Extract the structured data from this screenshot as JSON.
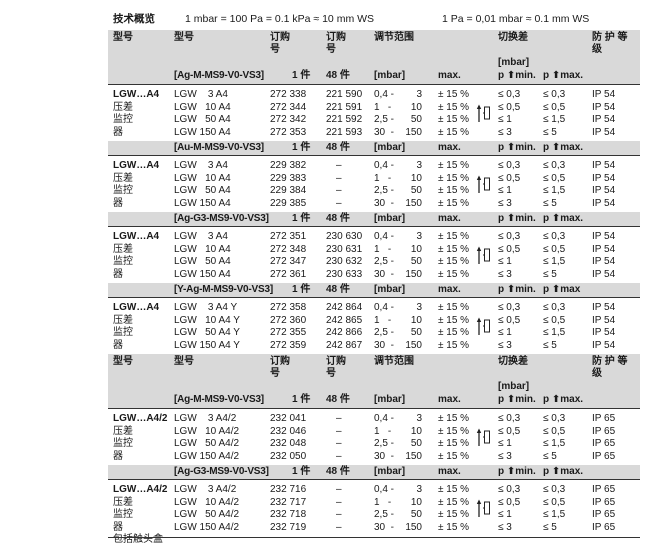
{
  "title": {
    "label": "技术概览",
    "conv1": "1 mbar = 100 Pa = 0.1 kPa ≈ 10 mm WS",
    "conv2": "1 Pa = 0,01 mbar ≈ 0.1 mm WS"
  },
  "header_labels": {
    "c1": "型号",
    "c2": "型号",
    "c3": "订购\n号",
    "c4": "订购\n号",
    "range": "调节范围",
    "diff": "切换差",
    "diff_unit": "[mbar]",
    "ip": "防 护 等\n级"
  },
  "icon": "pressure-switch-symbol-icon",
  "colors": {
    "band": "#d9d9d9",
    "text": "#1a1a1a"
  },
  "tables": [
    {
      "groups": [
        {
          "sub": {
            "variant": "[Ag-M-MS9-V0-VS3]",
            "c3": "1 件",
            "c4": "48 件",
            "range": "[mbar]",
            "max": "max.",
            "min": "p ⬆min.",
            "pmax": "p ⬆max."
          },
          "label": [
            "LGW…A4",
            "压差",
            "监控",
            "器"
          ],
          "rows": [
            {
              "type": "LGW    3 A4",
              "o1": "272 338",
              "o48": "221 590",
              "lo": "0,4 -",
              "hi": "3",
              "max": "± 15 %",
              "min": "≤ 0,3",
              "pmax": "≤ 0,3",
              "ip": "IP 54"
            },
            {
              "type": "LGW   10 A4",
              "o1": "272 344",
              "o48": "221 591",
              "lo": "1   -",
              "hi": "10",
              "max": "± 15 %",
              "min": "≤ 0,5",
              "pmax": "≤ 0,5",
              "ip": "IP 54"
            },
            {
              "type": "LGW   50 A4",
              "o1": "272 342",
              "o48": "221 592",
              "lo": "2,5 -",
              "hi": "50",
              "max": "± 15 %",
              "min": "≤ 1",
              "pmax": "≤ 1,5",
              "ip": "IP 54"
            },
            {
              "type": "LGW 150 A4",
              "o1": "272 353",
              "o48": "221 593",
              "lo": "30  -",
              "hi": "150",
              "max": "± 15 %",
              "min": "≤ 3",
              "pmax": "≤ 5",
              "ip": "IP 54"
            }
          ]
        },
        {
          "sub": {
            "variant": "[Au-M-MS9-V0-VS3]",
            "c3": "1 件",
            "c4": "48 件",
            "range": "[mbar]",
            "max": "max.",
            "min": "p ⬆min.",
            "pmax": "p ⬆max."
          },
          "label": [
            "LGW…A4",
            "压差",
            "监控",
            "器"
          ],
          "rows": [
            {
              "type": "LGW    3 A4",
              "o1": "229 382",
              "o48": "–",
              "lo": "0,4 -",
              "hi": "3",
              "max": "± 15 %",
              "min": "≤ 0,3",
              "pmax": "≤ 0,3",
              "ip": "IP 54"
            },
            {
              "type": "LGW   10 A4",
              "o1": "229 383",
              "o48": "–",
              "lo": "1   -",
              "hi": "10",
              "max": "± 15 %",
              "min": "≤ 0,5",
              "pmax": "≤ 0,5",
              "ip": "IP 54"
            },
            {
              "type": "LGW   50 A4",
              "o1": "229 384",
              "o48": "–",
              "lo": "2,5 -",
              "hi": "50",
              "max": "± 15 %",
              "min": "≤ 1",
              "pmax": "≤ 1,5",
              "ip": "IP 54"
            },
            {
              "type": "LGW 150 A4",
              "o1": "229 385",
              "o48": "–",
              "lo": "30  -",
              "hi": "150",
              "max": "± 15 %",
              "min": "≤ 3",
              "pmax": "≤ 5",
              "ip": "IP 54"
            }
          ]
        },
        {
          "sub": {
            "variant": "[Ag-G3-MS9-V0-VS3]",
            "c3": "1 件",
            "c4": "48 件",
            "range": "[mbar]",
            "max": "max.",
            "min": "p ⬆min.",
            "pmax": "p ⬆max."
          },
          "label": [
            "LGW…A4",
            "压差",
            "监控",
            "器"
          ],
          "rows": [
            {
              "type": "LGW    3 A4",
              "o1": "272 351",
              "o48": "230 630",
              "lo": "0,4 -",
              "hi": "3",
              "max": "± 15 %",
              "min": "≤ 0,3",
              "pmax": "≤ 0,3",
              "ip": "IP 54"
            },
            {
              "type": "LGW   10 A4",
              "o1": "272 348",
              "o48": "230 631",
              "lo": "1   -",
              "hi": "10",
              "max": "± 15 %",
              "min": "≤ 0,5",
              "pmax": "≤ 0,5",
              "ip": "IP 54"
            },
            {
              "type": "LGW   50 A4",
              "o1": "272 347",
              "o48": "230 632",
              "lo": "2,5 -",
              "hi": "50",
              "max": "± 15 %",
              "min": "≤ 1",
              "pmax": "≤ 1,5",
              "ip": "IP 54"
            },
            {
              "type": "LGW 150 A4",
              "o1": "272 361",
              "o48": "230 633",
              "lo": "30  -",
              "hi": "150",
              "max": "± 15 %",
              "min": "≤ 3",
              "pmax": "≤ 5",
              "ip": "IP 54"
            }
          ]
        },
        {
          "sub": {
            "variant": "[Y-Ag-M-MS9-V0-VS3]",
            "c3": "1 件",
            "c4": "48 件",
            "range": "[mbar]",
            "max": "max.",
            "min": "p ⬆min.",
            "pmax": "p ⬆max"
          },
          "label": [
            "LGW…A4",
            "压差",
            "监控",
            "器"
          ],
          "rows": [
            {
              "type": "LGW    3 A4 Y",
              "o1": "272 358",
              "o48": "242 864",
              "lo": "0,4 -",
              "hi": "3",
              "max": "± 15 %",
              "min": "≤ 0,3",
              "pmax": "≤ 0,3",
              "ip": "IP 54"
            },
            {
              "type": "LGW   10 A4 Y",
              "o1": "272 360",
              "o48": "242 865",
              "lo": "1   -",
              "hi": "10",
              "max": "± 15 %",
              "min": "≤ 0,5",
              "pmax": "≤ 0,5",
              "ip": "IP 54"
            },
            {
              "type": "LGW   50 A4 Y",
              "o1": "272 355",
              "o48": "242 866",
              "lo": "2,5 -",
              "hi": "50",
              "max": "± 15 %",
              "min": "≤ 1",
              "pmax": "≤ 1,5",
              "ip": "IP 54"
            },
            {
              "type": "LGW 150 A4 Y",
              "o1": "272 359",
              "o48": "242 867",
              "lo": "30  -",
              "hi": "150",
              "max": "± 15 %",
              "min": "≤ 3",
              "pmax": "≤ 5",
              "ip": "IP 54"
            }
          ]
        }
      ]
    },
    {
      "groups": [
        {
          "sub": {
            "variant": "[Ag-M-MS9-V0-VS3]",
            "c3": "1 件",
            "c4": "48 件",
            "range": "[mbar]",
            "max": "max.",
            "min": "p ⬆min.",
            "pmax": "p ⬆max."
          },
          "label": [
            "LGW…A4/2",
            "压差",
            "监控",
            "器"
          ],
          "rows": [
            {
              "type": "LGW    3 A4/2",
              "o1": "232 041",
              "o48": "–",
              "lo": "0,4 -",
              "hi": "3",
              "max": "± 15 %",
              "min": "≤ 0,3",
              "pmax": "≤ 0,3",
              "ip": "IP 65"
            },
            {
              "type": "LGW   10 A4/2",
              "o1": "232 046",
              "o48": "–",
              "lo": "1   -",
              "hi": "10",
              "max": "± 15 %",
              "min": "≤ 0,5",
              "pmax": "≤ 0,5",
              "ip": "IP 65"
            },
            {
              "type": "LGW   50 A4/2",
              "o1": "232 048",
              "o48": "–",
              "lo": "2,5 -",
              "hi": "50",
              "max": "± 15 %",
              "min": "≤ 1",
              "pmax": "≤ 1,5",
              "ip": "IP 65"
            },
            {
              "type": "LGW 150 A4/2",
              "o1": "232 050",
              "o48": "–",
              "lo": "30  -",
              "hi": "150",
              "max": "± 15 %",
              "min": "≤ 3",
              "pmax": "≤ 5",
              "ip": "IP 65"
            }
          ]
        },
        {
          "sub": {
            "variant": "[Ag-G3-MS9-V0-VS3]",
            "c3": "1 件",
            "c4": "48 件",
            "range": "[mbar]",
            "max": "max.",
            "min": "p ⬆min.",
            "pmax": "p ⬆max."
          },
          "label": [
            "LGW…A4/2",
            "压差",
            "监控",
            "器",
            "包括触头盒"
          ],
          "rows": [
            {
              "type": "LGW    3 A4/2",
              "o1": "232 716",
              "o48": "–",
              "lo": "0,4 -",
              "hi": "3",
              "max": "± 15 %",
              "min": "≤ 0,3",
              "pmax": "≤ 0,3",
              "ip": "IP 65"
            },
            {
              "type": "LGW   10 A4/2",
              "o1": "232 717",
              "o48": "–",
              "lo": "1   -",
              "hi": "10",
              "max": "± 15 %",
              "min": "≤ 0,5",
              "pmax": "≤ 0,5",
              "ip": "IP 65"
            },
            {
              "type": "LGW   50 A4/2",
              "o1": "232 718",
              "o48": "–",
              "lo": "2,5 -",
              "hi": "50",
              "max": "± 15 %",
              "min": "≤ 1",
              "pmax": "≤ 1,5",
              "ip": "IP 65"
            },
            {
              "type": "LGW 150 A4/2",
              "o1": "232 719",
              "o48": "–",
              "lo": "30  -",
              "hi": "150",
              "max": "± 15 %",
              "min": "≤ 3",
              "pmax": "≤ 5",
              "ip": "IP 65"
            }
          ]
        }
      ]
    }
  ]
}
